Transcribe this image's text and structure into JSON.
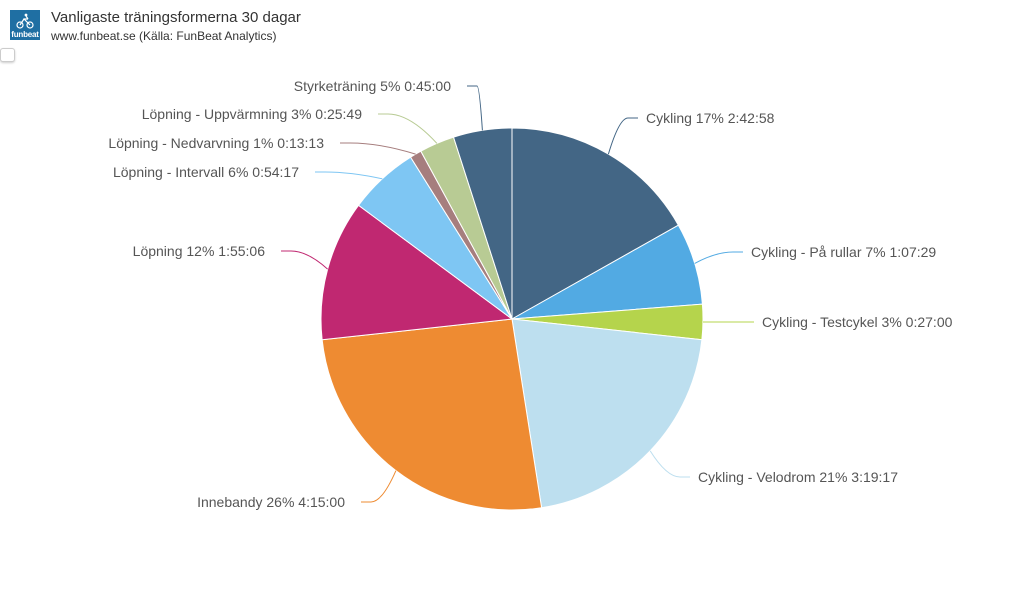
{
  "header": {
    "logo_text": "funbeat",
    "title": "Vanligaste träningsformerna 30 dagar",
    "subtitle": "www.funbeat.se (Källa: FunBeat Analytics)"
  },
  "chart_data": {
    "type": "pie",
    "title": "Vanligaste träningsformerna 30 dagar",
    "subtitle": "www.funbeat.se (Källa: FunBeat Analytics)",
    "slices": [
      {
        "name": "Cykling",
        "value": 17,
        "label": "Cykling 17% 2:42:58",
        "color": "#436685"
      },
      {
        "name": "Cykling - På rullar",
        "value": 7,
        "label": "Cykling - På rullar 7% 1:07:29",
        "color": "#52aae3"
      },
      {
        "name": "Cykling - Testcykel",
        "value": 3,
        "label": "Cykling - Testcykel 3% 0:27:00",
        "color": "#b5d44c"
      },
      {
        "name": "Cykling - Velodrom",
        "value": 21,
        "label": "Cykling - Velodrom 21% 3:19:17",
        "color": "#bddfef"
      },
      {
        "name": "Innebandy",
        "value": 26,
        "label": "Innebandy 26% 4:15:00",
        "color": "#ee8b32"
      },
      {
        "name": "Löpning",
        "value": 12,
        "label": "Löpning 12% 1:55:06",
        "color": "#c02871"
      },
      {
        "name": "Löpning - Intervall",
        "value": 6,
        "label": "Löpning - Intervall 6% 0:54:17",
        "color": "#7ec6f3"
      },
      {
        "name": "Löpning - Nedvarvning",
        "value": 1,
        "label": "Löpning - Nedvarvning 1% 0:13:13",
        "color": "#a67e7e"
      },
      {
        "name": "Löpning - Uppvärmning",
        "value": 3,
        "label": "Löpning - Uppvärmning 3% 0:25:49",
        "color": "#b8cb94"
      },
      {
        "name": "Styrketräning",
        "value": 5,
        "label": "Styrketräning 5% 0:45:00",
        "color": "#436685"
      }
    ]
  }
}
